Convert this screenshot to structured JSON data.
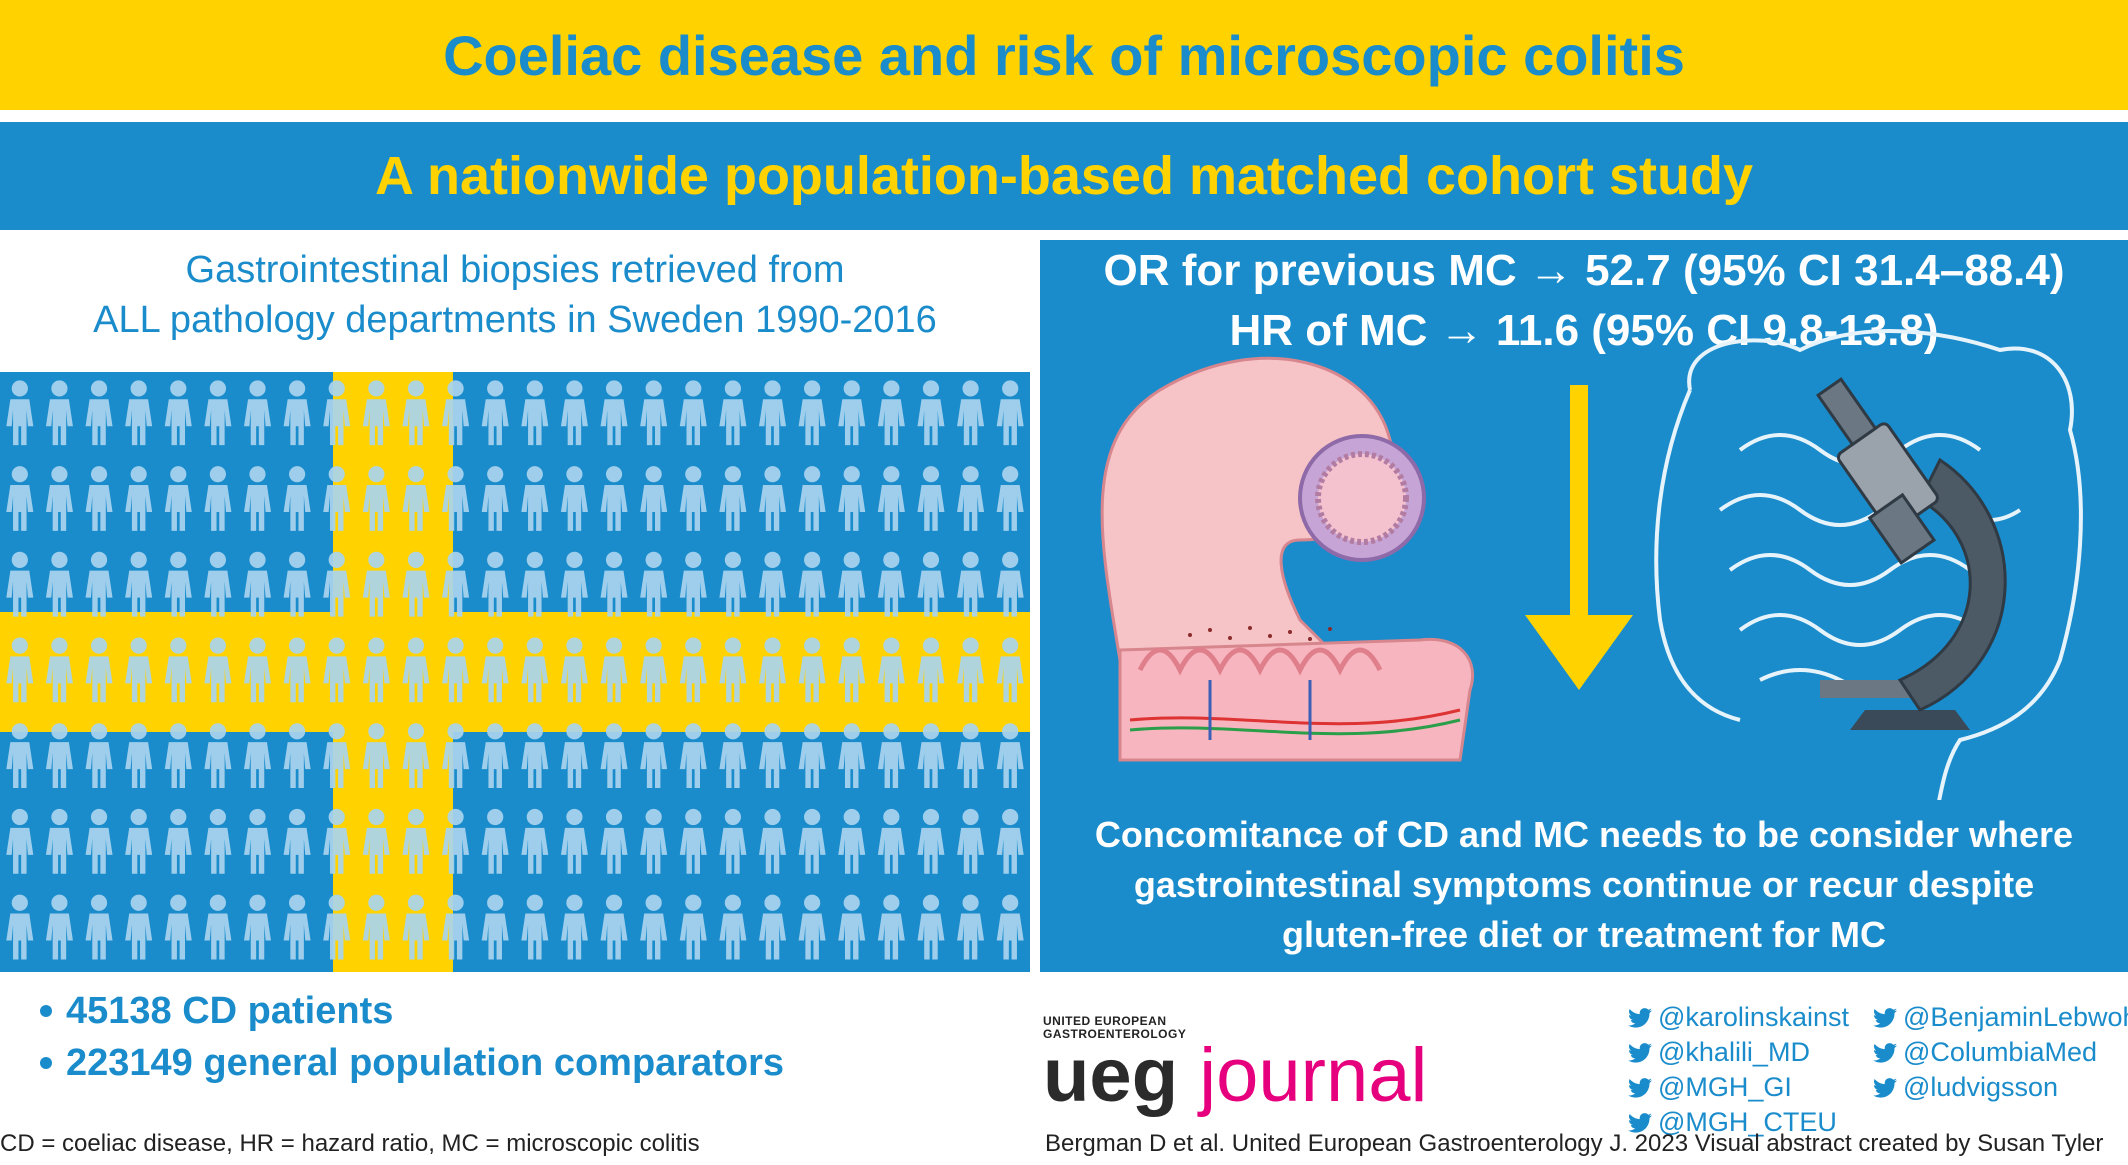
{
  "title": "Coeliac disease and risk of microscopic colitis",
  "subtitle": "A nationwide population-based matched cohort study",
  "left": {
    "heading_line1": "Gastrointestinal biopsies retrieved from",
    "heading_line2": "ALL pathology departments in Sweden 1990-2016"
  },
  "right": {
    "or_stat": "OR for previous MC → 52.7 (95% CI 31.4–88.4)",
    "hr_stat": "HR of MC → 11.6 (95% CI 9.8-13.8)",
    "conclusion_line1": "Concomitance of CD and MC needs to be consider where",
    "conclusion_line2": "gastrointestinal symptoms continue or recur despite",
    "conclusion_line3": "gluten-free diet or treatment for MC"
  },
  "bullets": [
    "45138 CD patients",
    "223149 general population comparators"
  ],
  "logo": {
    "small_line1": "UNITED EUROPEAN",
    "small_line2": "GASTROENTEROLOGY",
    "word1": "ueg",
    "word2": "journal"
  },
  "twitter": {
    "col1": [
      "@karolinskainst",
      "@khalili_MD",
      "@MGH_GI",
      "@MGH_CTEU"
    ],
    "col2": [
      "@BenjaminLebwohl",
      "@ColumbiaMed",
      "@ludvigsson"
    ]
  },
  "footnote_left": "CD = coeliac disease, HR = hazard ratio, MC = microscopic colitis",
  "footnote_right": "Bergman D et al. United European Gastroenterology J. 2023 Visual abstract created by Susan Tyler",
  "colors": {
    "blue": "#1a8ccb",
    "yellow": "#ffd200",
    "people": "#a9d4ef",
    "magenta": "#e6007e"
  },
  "icons": [
    "person-icon",
    "small-intestine-illustration",
    "down-arrow-icon",
    "colon-outline",
    "microscope-icon",
    "twitter-icon"
  ]
}
